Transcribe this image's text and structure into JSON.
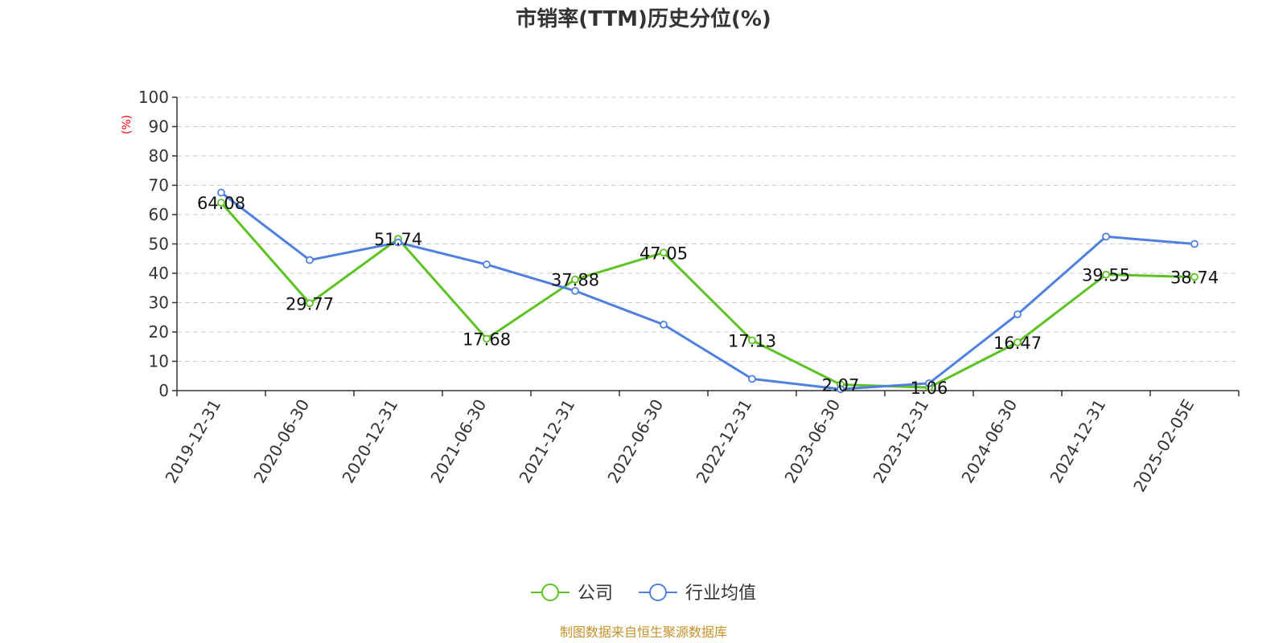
{
  "chart_data": {
    "type": "line",
    "title": "市销率(TTM)历史分位(%)",
    "ylabel": "(%)",
    "ylim": [
      0,
      100
    ],
    "yticks": [
      0,
      10,
      20,
      30,
      40,
      50,
      60,
      70,
      80,
      90,
      100
    ],
    "grid": true,
    "legend_placement": "bottom",
    "categories": [
      "2019-12-31",
      "2020-06-30",
      "2020-12-31",
      "2021-06-30",
      "2021-12-31",
      "2022-06-30",
      "2022-12-31",
      "2023-06-30",
      "2023-12-31",
      "2024-06-30",
      "2024-12-31",
      "2025-02-05E"
    ],
    "series": [
      {
        "name": "公司",
        "color": "#5cc323",
        "show_labels": true,
        "values": [
          64.08,
          29.77,
          51.74,
          17.68,
          37.88,
          47.05,
          17.13,
          2.07,
          1.06,
          16.47,
          39.55,
          38.74
        ]
      },
      {
        "name": "行业均值",
        "color": "#4f80e0",
        "show_labels": false,
        "values": [
          67.5,
          44.5,
          50.5,
          43,
          34,
          22.5,
          4,
          0.5,
          2.5,
          26,
          52.5,
          50
        ]
      }
    ],
    "source": "制图数据来自恒生聚源数据库",
    "source_color": "#c8902a",
    "ylabel_color": "#ff0000"
  }
}
